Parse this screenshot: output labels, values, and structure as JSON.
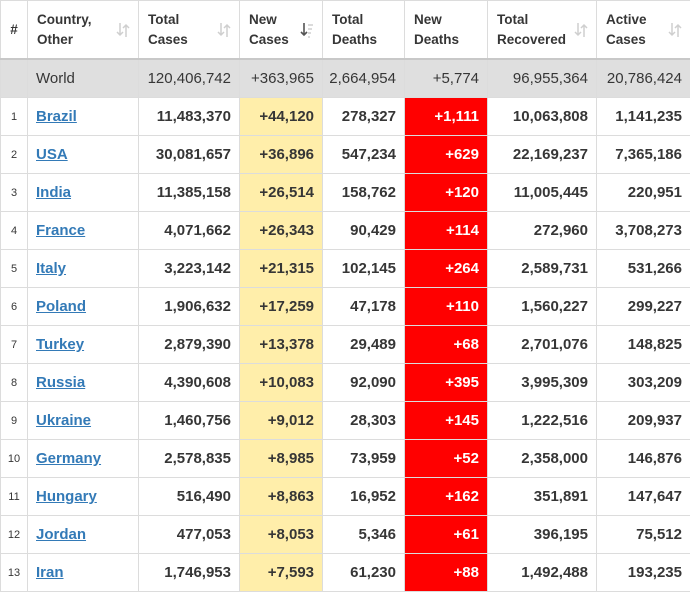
{
  "colors": {
    "new_cases_bg": "#ffeeaa",
    "new_deaths_bg": "#ff0000",
    "link": "#337ab7",
    "world_row_bg": "#dfdfdf"
  },
  "headers": {
    "index": "#",
    "country": [
      "Country,",
      "Other"
    ],
    "total_cases": [
      "Total",
      "Cases"
    ],
    "new_cases": [
      "New",
      "Cases"
    ],
    "total_deaths": [
      "Total",
      "Deaths"
    ],
    "new_deaths": [
      "New",
      "Deaths"
    ],
    "total_recovered": [
      "Total",
      "Recovered"
    ],
    "active_cases": [
      "Active",
      "Cases"
    ]
  },
  "sort_icons": {
    "default": "sort-arrows-icon",
    "active": "sort-descending-icon"
  },
  "world": {
    "label": "World",
    "total_cases": "120,406,742",
    "new_cases": "+363,965",
    "total_deaths": "2,664,954",
    "new_deaths": "+5,774",
    "total_recovered": "96,955,364",
    "active_cases": "20,786,424"
  },
  "rows": [
    {
      "index": "1",
      "country": "Brazil",
      "total_cases": "11,483,370",
      "new_cases": "+44,120",
      "total_deaths": "278,327",
      "new_deaths": "+1,111",
      "total_recovered": "10,063,808",
      "active_cases": "1,141,235"
    },
    {
      "index": "2",
      "country": "USA",
      "total_cases": "30,081,657",
      "new_cases": "+36,896",
      "total_deaths": "547,234",
      "new_deaths": "+629",
      "total_recovered": "22,169,237",
      "active_cases": "7,365,186"
    },
    {
      "index": "3",
      "country": "India",
      "total_cases": "11,385,158",
      "new_cases": "+26,514",
      "total_deaths": "158,762",
      "new_deaths": "+120",
      "total_recovered": "11,005,445",
      "active_cases": "220,951"
    },
    {
      "index": "4",
      "country": "France",
      "total_cases": "4,071,662",
      "new_cases": "+26,343",
      "total_deaths": "90,429",
      "new_deaths": "+114",
      "total_recovered": "272,960",
      "active_cases": "3,708,273"
    },
    {
      "index": "5",
      "country": "Italy",
      "total_cases": "3,223,142",
      "new_cases": "+21,315",
      "total_deaths": "102,145",
      "new_deaths": "+264",
      "total_recovered": "2,589,731",
      "active_cases": "531,266"
    },
    {
      "index": "6",
      "country": "Poland",
      "total_cases": "1,906,632",
      "new_cases": "+17,259",
      "total_deaths": "47,178",
      "new_deaths": "+110",
      "total_recovered": "1,560,227",
      "active_cases": "299,227"
    },
    {
      "index": "7",
      "country": "Turkey",
      "total_cases": "2,879,390",
      "new_cases": "+13,378",
      "total_deaths": "29,489",
      "new_deaths": "+68",
      "total_recovered": "2,701,076",
      "active_cases": "148,825"
    },
    {
      "index": "8",
      "country": "Russia",
      "total_cases": "4,390,608",
      "new_cases": "+10,083",
      "total_deaths": "92,090",
      "new_deaths": "+395",
      "total_recovered": "3,995,309",
      "active_cases": "303,209"
    },
    {
      "index": "9",
      "country": "Ukraine",
      "total_cases": "1,460,756",
      "new_cases": "+9,012",
      "total_deaths": "28,303",
      "new_deaths": "+145",
      "total_recovered": "1,222,516",
      "active_cases": "209,937"
    },
    {
      "index": "10",
      "country": "Germany",
      "total_cases": "2,578,835",
      "new_cases": "+8,985",
      "total_deaths": "73,959",
      "new_deaths": "+52",
      "total_recovered": "2,358,000",
      "active_cases": "146,876"
    },
    {
      "index": "11",
      "country": "Hungary",
      "total_cases": "516,490",
      "new_cases": "+8,863",
      "total_deaths": "16,952",
      "new_deaths": "+162",
      "total_recovered": "351,891",
      "active_cases": "147,647"
    },
    {
      "index": "12",
      "country": "Jordan",
      "total_cases": "477,053",
      "new_cases": "+8,053",
      "total_deaths": "5,346",
      "new_deaths": "+61",
      "total_recovered": "396,195",
      "active_cases": "75,512"
    },
    {
      "index": "13",
      "country": "Iran",
      "total_cases": "1,746,953",
      "new_cases": "+7,593",
      "total_deaths": "61,230",
      "new_deaths": "+88",
      "total_recovered": "1,492,488",
      "active_cases": "193,235"
    }
  ]
}
